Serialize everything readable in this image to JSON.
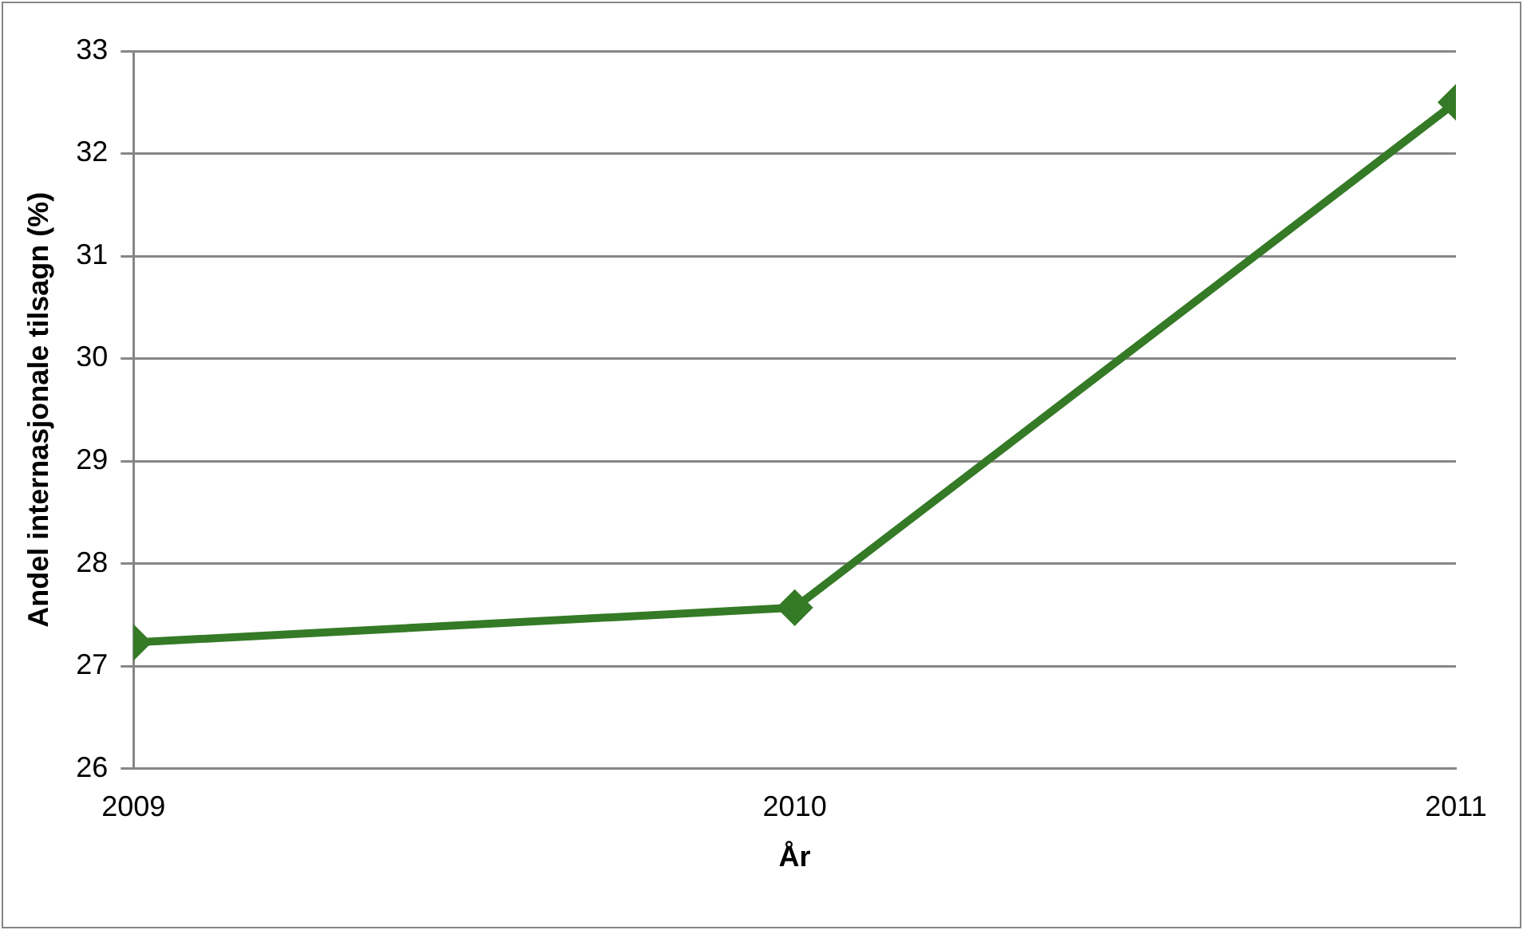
{
  "chart_data": {
    "type": "line",
    "xlabel": "År",
    "ylabel": "Andel internasjonale tilsagn (%)",
    "x": [
      2009,
      2010,
      2011
    ],
    "series": [
      {
        "color": "#357a26",
        "values": [
          27.23,
          27.57,
          32.5
        ]
      }
    ],
    "xlim": [
      2009,
      2011
    ],
    "xticks": [
      2009,
      2010,
      2011
    ],
    "ylim": [
      26,
      33
    ],
    "yticks": [
      26,
      27,
      28,
      29,
      30,
      31,
      32,
      33
    ],
    "grid": "y",
    "legend": false,
    "marker": "diamond",
    "line_style": "solid"
  }
}
